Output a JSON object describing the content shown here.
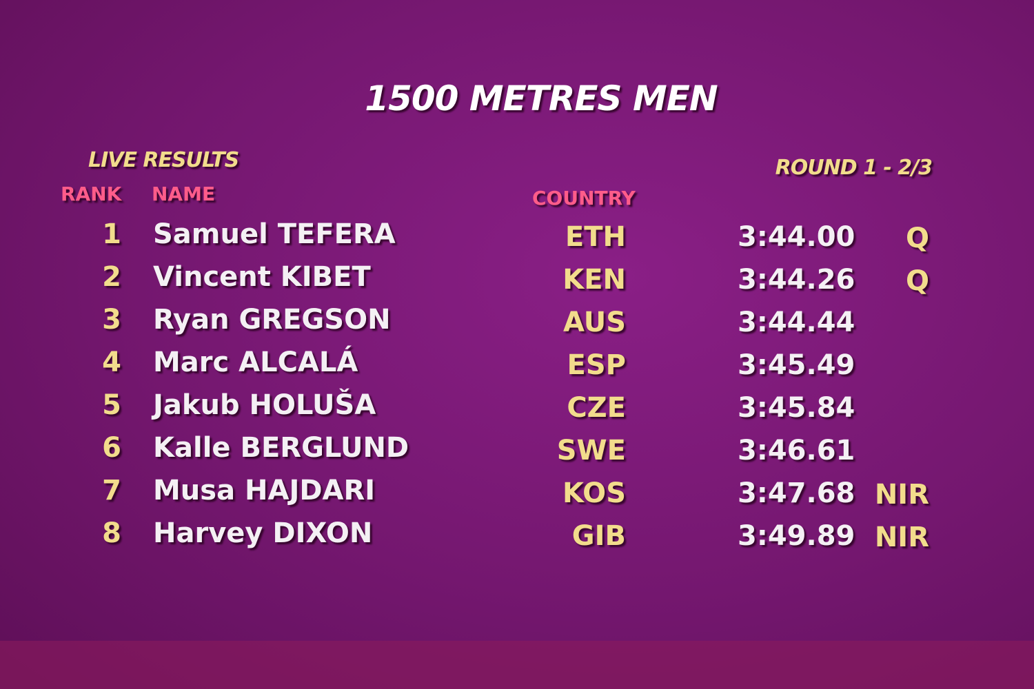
{
  "title": "1500 METRES MEN",
  "subtitle": "LIVE RESULTS",
  "round": "ROUND 1 - 2/3",
  "headers": {
    "rank": "RANK",
    "name": "NAME",
    "country": "COUNTRY"
  },
  "rows": [
    {
      "rank": "1",
      "name": "Samuel TEFERA",
      "country": "ETH",
      "time": "3:44.00",
      "mark": "Q"
    },
    {
      "rank": "2",
      "name": "Vincent KIBET",
      "country": "KEN",
      "time": "3:44.26",
      "mark": "Q"
    },
    {
      "rank": "3",
      "name": "Ryan GREGSON",
      "country": "AUS",
      "time": "3:44.44"
    },
    {
      "rank": "4",
      "name": "Marc ALCALÁ",
      "country": "ESP",
      "time": "3:45.49"
    },
    {
      "rank": "5",
      "name": "Jakub HOLUŠA",
      "country": "CZE",
      "time": "3:45.84"
    },
    {
      "rank": "6",
      "name": "Kalle BERGLUND",
      "country": "SWE",
      "time": "3:46.61"
    },
    {
      "rank": "7",
      "name": "Musa HAJDARI",
      "country": "KOS",
      "time": "3:47.68",
      "mark": "NIR"
    },
    {
      "rank": "8",
      "name": "Harvey DIXON",
      "country": "GIB",
      "time": "3:49.89",
      "mark": "NIR"
    }
  ]
}
